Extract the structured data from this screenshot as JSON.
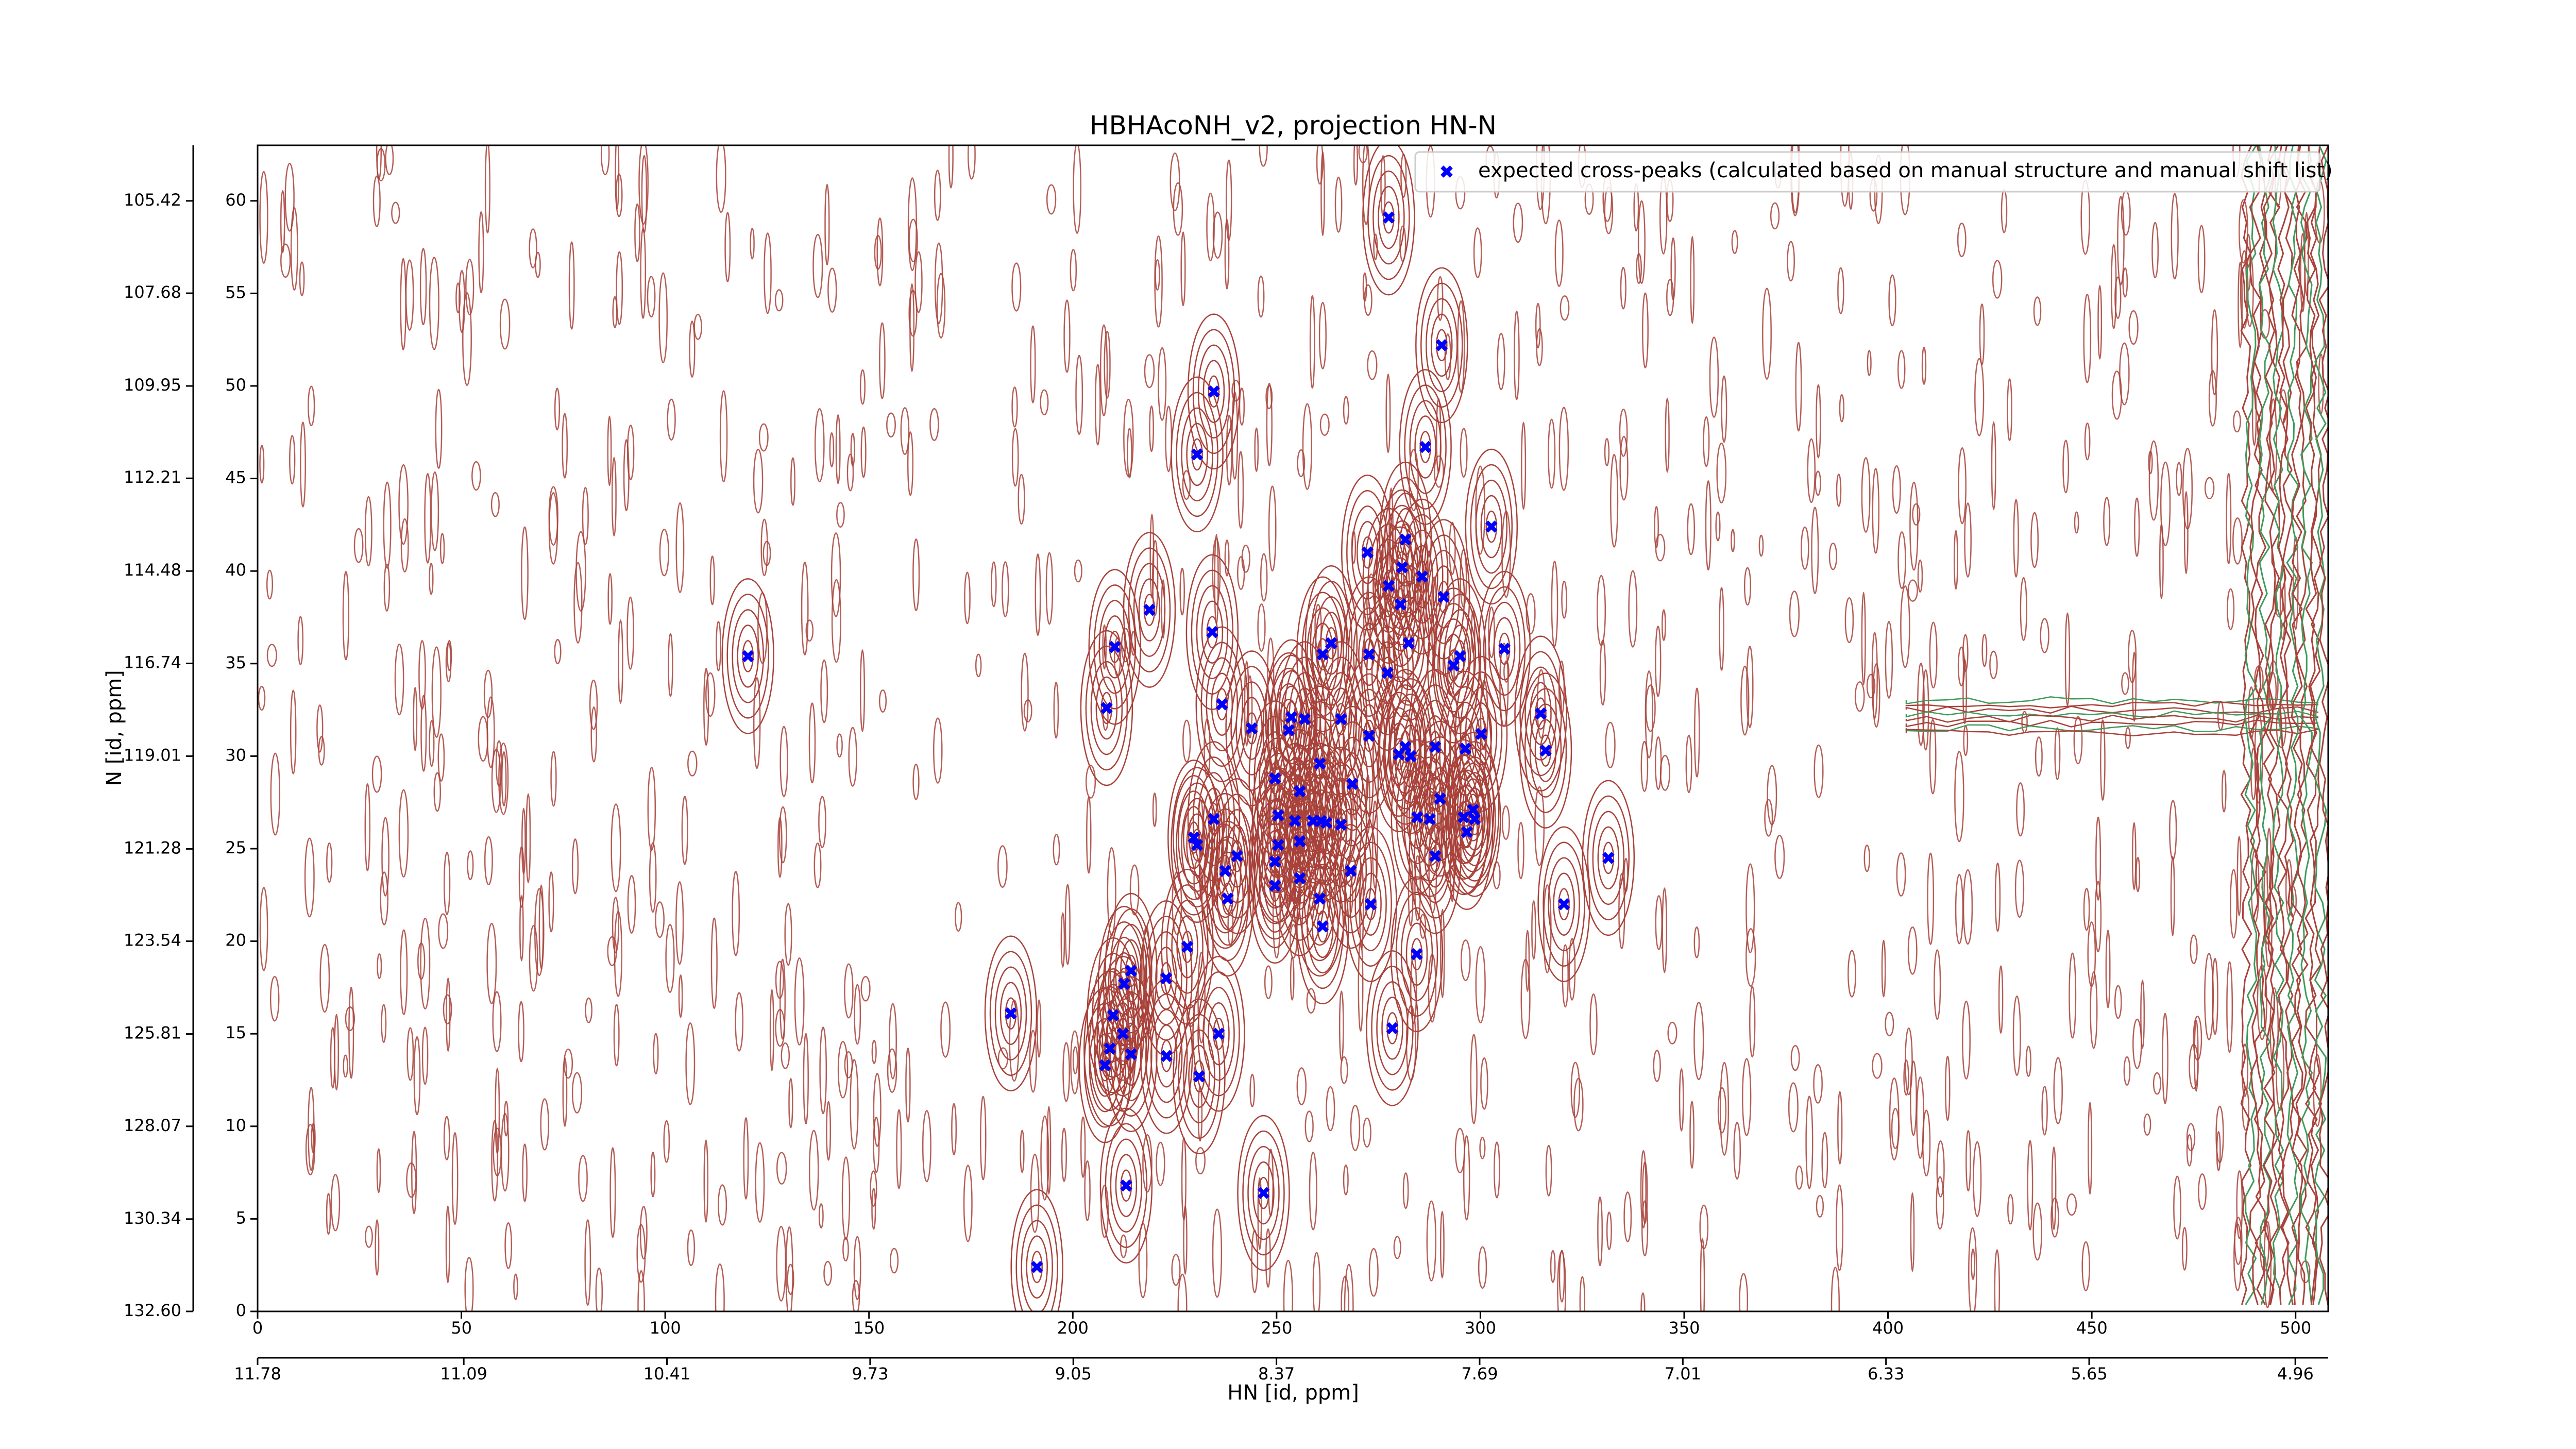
{
  "chart_data": {
    "type": "scatter",
    "title": "HBHAcoNH_v2, projection HN-N",
    "xlabel": "HN [id, ppm]",
    "ylabel": "N [id, ppm]",
    "legend": "upper right",
    "contour_colors": [
      "#a8423a",
      "#3f9a5c"
    ],
    "series": [
      {
        "name": "expected cross-peaks (calculated based on manual structure and manual shift list)",
        "color": "#0000ff",
        "x": [
          277.5,
          290.5,
          234.6,
          286.5,
          230.5,
          302.7,
          272.3,
          281.6,
          280.8,
          285.7,
          277.5,
          291.0,
          280.4,
          218.8,
          234.2,
          210.3,
          120.3,
          263.4,
          282.4,
          305.9,
          261.3,
          272.7,
          295.0,
          293.4,
          277.2,
          208.3,
          314.8,
          236.6,
          253.6,
          256.9,
          265.8,
          243.9,
          253.0,
          272.7,
          300.2,
          281.6,
          288.9,
          296.3,
          316.0,
          280.0,
          282.9,
          260.6,
          249.6,
          268.6,
          255.7,
          290.1,
          298.2,
          234.6,
          250.4,
          284.5,
          295.9,
          287.6,
          298.6,
          254.5,
          258.9,
          260.9,
          262.2,
          265.8,
          296.7,
          229.7,
          230.5,
          250.4,
          255.7,
          240.3,
          249.6,
          288.9,
          331.4,
          237.4,
          268.2,
          255.7,
          249.6,
          238.0,
          260.6,
          273.1,
          320.5,
          261.3,
          228.1,
          284.4,
          214.3,
          212.6,
          222.9,
          209.9,
          184.8,
          212.3,
          235.8,
          278.4,
          209.1,
          214.3,
          223.0,
          207.9,
          231.0,
          213.1,
          246.8,
          191.2
        ],
        "values": [
          59.1,
          52.2,
          49.7,
          46.7,
          46.3,
          42.4,
          41.0,
          41.7,
          40.2,
          39.7,
          39.2,
          38.6,
          38.2,
          37.9,
          36.7,
          35.9,
          35.4,
          36.1,
          36.1,
          35.8,
          35.5,
          35.5,
          35.4,
          34.9,
          34.5,
          32.6,
          32.3,
          32.8,
          32.1,
          32.0,
          32.0,
          31.5,
          31.4,
          31.1,
          31.2,
          30.5,
          30.5,
          30.4,
          30.3,
          30.1,
          30.0,
          29.6,
          28.8,
          28.5,
          28.1,
          27.7,
          27.1,
          26.6,
          26.8,
          26.7,
          26.7,
          26.6,
          26.6,
          26.5,
          26.5,
          26.5,
          26.4,
          26.3,
          25.9,
          25.6,
          25.2,
          25.2,
          25.4,
          24.6,
          24.3,
          24.6,
          24.5,
          23.8,
          23.8,
          23.4,
          23.0,
          22.3,
          22.3,
          22.0,
          22.0,
          20.8,
          19.7,
          19.3,
          18.4,
          17.7,
          18.0,
          16.0,
          16.1,
          15.0,
          15.0,
          15.3,
          14.2,
          13.9,
          13.8,
          13.3,
          12.7,
          6.8,
          6.4,
          2.4
        ]
      }
    ],
    "xlim": [
      0,
      508
    ],
    "xticks": [
      0,
      50,
      100,
      150,
      200,
      250,
      300,
      350,
      400,
      450,
      500
    ],
    "ylim": [
      0,
      63
    ],
    "yticks": [
      0,
      5,
      10,
      15,
      20,
      25,
      30,
      35,
      40,
      45,
      50,
      55,
      60
    ],
    "x2lim": [
      11.78,
      4.85
    ],
    "x2ticks": [
      11.78,
      11.09,
      10.41,
      9.73,
      9.05,
      8.37,
      7.69,
      7.01,
      6.33,
      5.65,
      4.96
    ],
    "y2lim": [
      132.6,
      104.06
    ],
    "y2ticks": [
      {
        "value": 132.6,
        "label": "132.60"
      },
      130.34,
      128.07,
      125.81,
      123.54,
      121.28,
      119.01,
      116.74,
      114.48,
      112.21,
      109.95,
      107.68,
      105.42
    ]
  }
}
